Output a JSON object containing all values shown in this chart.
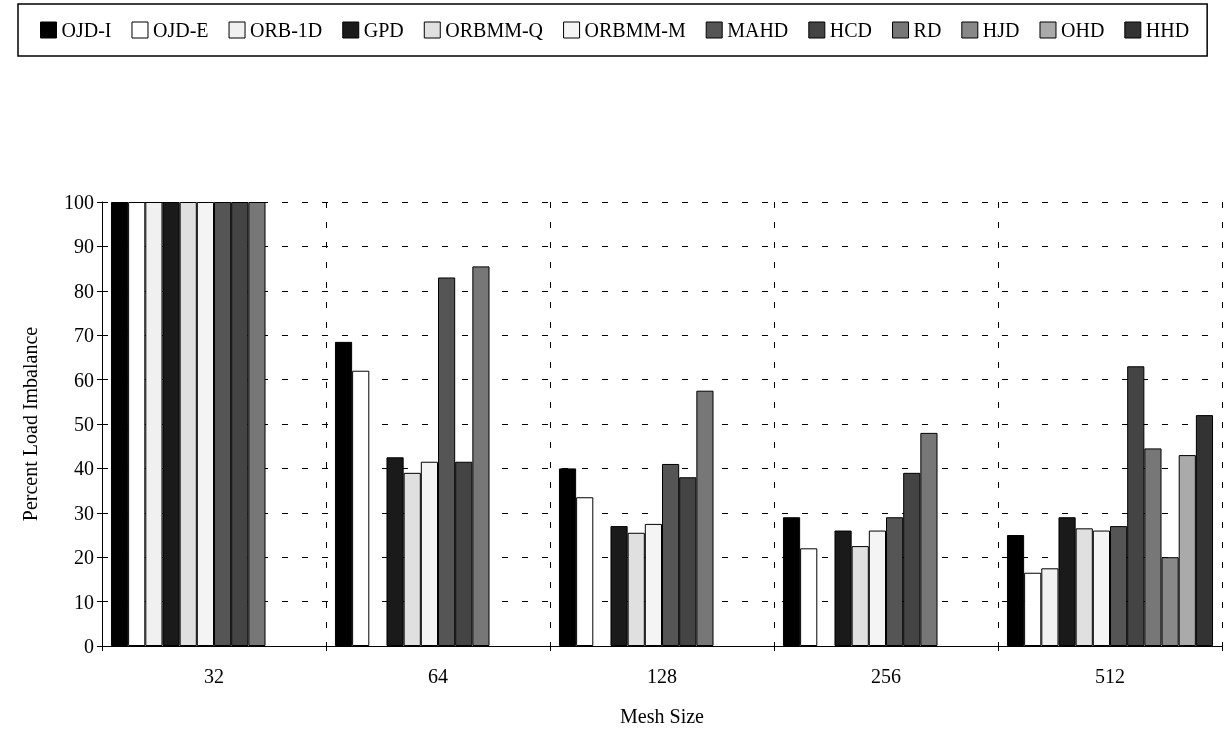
{
  "chart_data": {
    "type": "bar",
    "xlabel": "Mesh Size",
    "ylabel": "Percent Load Imbalance",
    "categories": [
      "32",
      "64",
      "128",
      "256",
      "512"
    ],
    "series": [
      {
        "name": "OJD-I",
        "color": "#000000",
        "values": [
          100,
          68.5,
          40,
          29,
          25
        ]
      },
      {
        "name": "OJD-E",
        "color": "#ffffff",
        "values": [
          100,
          62,
          33.5,
          22,
          16.5
        ]
      },
      {
        "name": "ORB-1D",
        "color": "#f0f0f0",
        "values": [
          100,
          null,
          null,
          null,
          17.5
        ]
      },
      {
        "name": "GPD",
        "color": "#1a1a1a",
        "values": [
          100,
          42.5,
          27,
          26,
          29
        ]
      },
      {
        "name": "ORBMM-Q",
        "color": "#e0e0e0",
        "values": [
          100,
          39,
          25.5,
          22.5,
          26.5
        ]
      },
      {
        "name": "ORBMM-M",
        "color": "#f4f4f4",
        "values": [
          100,
          41.5,
          27.5,
          26,
          26
        ]
      },
      {
        "name": "MAHD",
        "color": "#555555",
        "values": [
          100,
          83,
          41,
          29,
          27
        ]
      },
      {
        "name": "HCD",
        "color": "#444444",
        "values": [
          100,
          41.5,
          38,
          39,
          63
        ]
      },
      {
        "name": "RD",
        "color": "#777777",
        "values": [
          100,
          85.5,
          57.5,
          48,
          44.5
        ]
      },
      {
        "name": "HJD",
        "color": "#888888",
        "values": [
          null,
          null,
          null,
          null,
          20
        ]
      },
      {
        "name": "OHD",
        "color": "#aaaaaa",
        "values": [
          null,
          null,
          null,
          null,
          43
        ]
      },
      {
        "name": "HHD",
        "color": "#333333",
        "values": [
          null,
          null,
          null,
          null,
          52
        ]
      }
    ],
    "ylim": [
      0,
      100
    ],
    "yticks": [
      0,
      10,
      20,
      30,
      40,
      50,
      60,
      70,
      80,
      90,
      100
    ],
    "grid": true,
    "legend": "top"
  }
}
